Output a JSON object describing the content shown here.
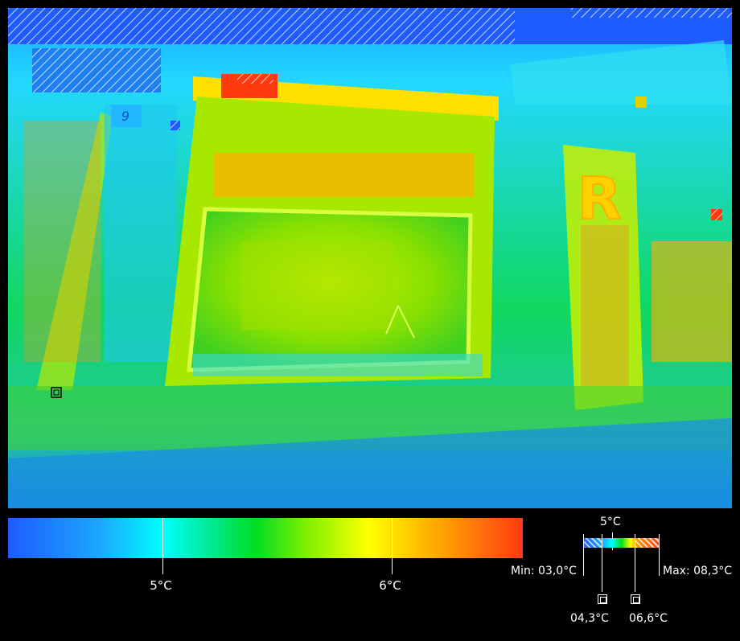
{
  "scale": {
    "ticks": [
      {
        "label": "5°C",
        "pos": 0.3
      },
      {
        "label": "6°C",
        "pos": 0.745
      }
    ]
  },
  "mini_scale": {
    "top_label": "5°C",
    "min_label": "Min: 03,0°C",
    "max_label": "Max: 08,3°C",
    "marker1_label": "04,3°C",
    "marker2_label": "06,6°C"
  },
  "image": {
    "sign_letter": "R",
    "house_number": "9"
  },
  "colors": {
    "cold": "#1e5cff",
    "mid": "#00ffff",
    "green": "#00dd22",
    "warm": "#ffff00",
    "hot": "#ff3a10"
  }
}
